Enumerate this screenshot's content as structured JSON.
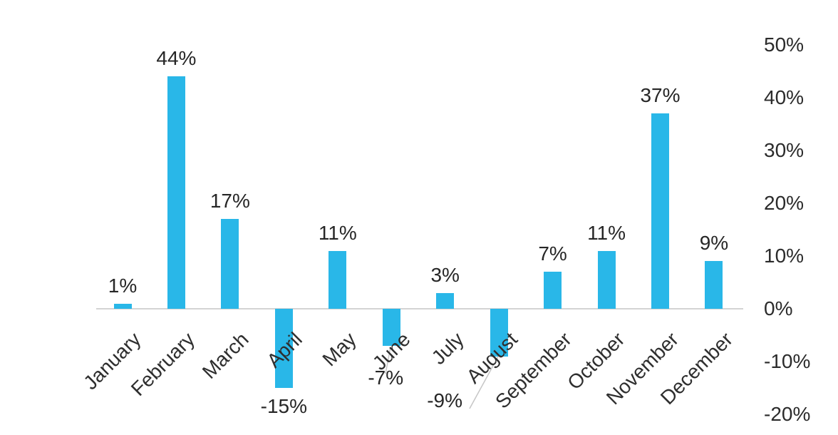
{
  "chart_data": {
    "type": "bar",
    "title": "",
    "xlabel": "",
    "ylabel": "",
    "categories": [
      "January",
      "February",
      "March",
      "April",
      "May",
      "June",
      "July",
      "August",
      "September",
      "October",
      "November",
      "December"
    ],
    "values": [
      1,
      44,
      17,
      -15,
      11,
      -7,
      3,
      -9,
      7,
      11,
      37,
      9
    ],
    "data_labels": [
      "1%",
      "44%",
      "17%",
      "-15%",
      "11%",
      "-7%",
      "3%",
      "-9%",
      "7%",
      "11%",
      "37%",
      "9%"
    ],
    "y_axis": {
      "side": "right",
      "tick_labels": [
        "50%",
        "40%",
        "30%",
        "20%",
        "10%",
        "0%",
        "-10%",
        "-20%"
      ],
      "tick_values": [
        50,
        40,
        30,
        20,
        10,
        0,
        -10,
        -20
      ]
    },
    "ylim": [
      -20,
      50
    ],
    "grid": false,
    "legend": false,
    "background_color": "#ffffff",
    "bar_color": "#29b7e8",
    "axis_line_color": "#d4d4d4",
    "label_color": "#2b2b2b",
    "leader_line_color": "#c6c6c6",
    "leader_lines_for": [
      "June",
      "August"
    ]
  }
}
